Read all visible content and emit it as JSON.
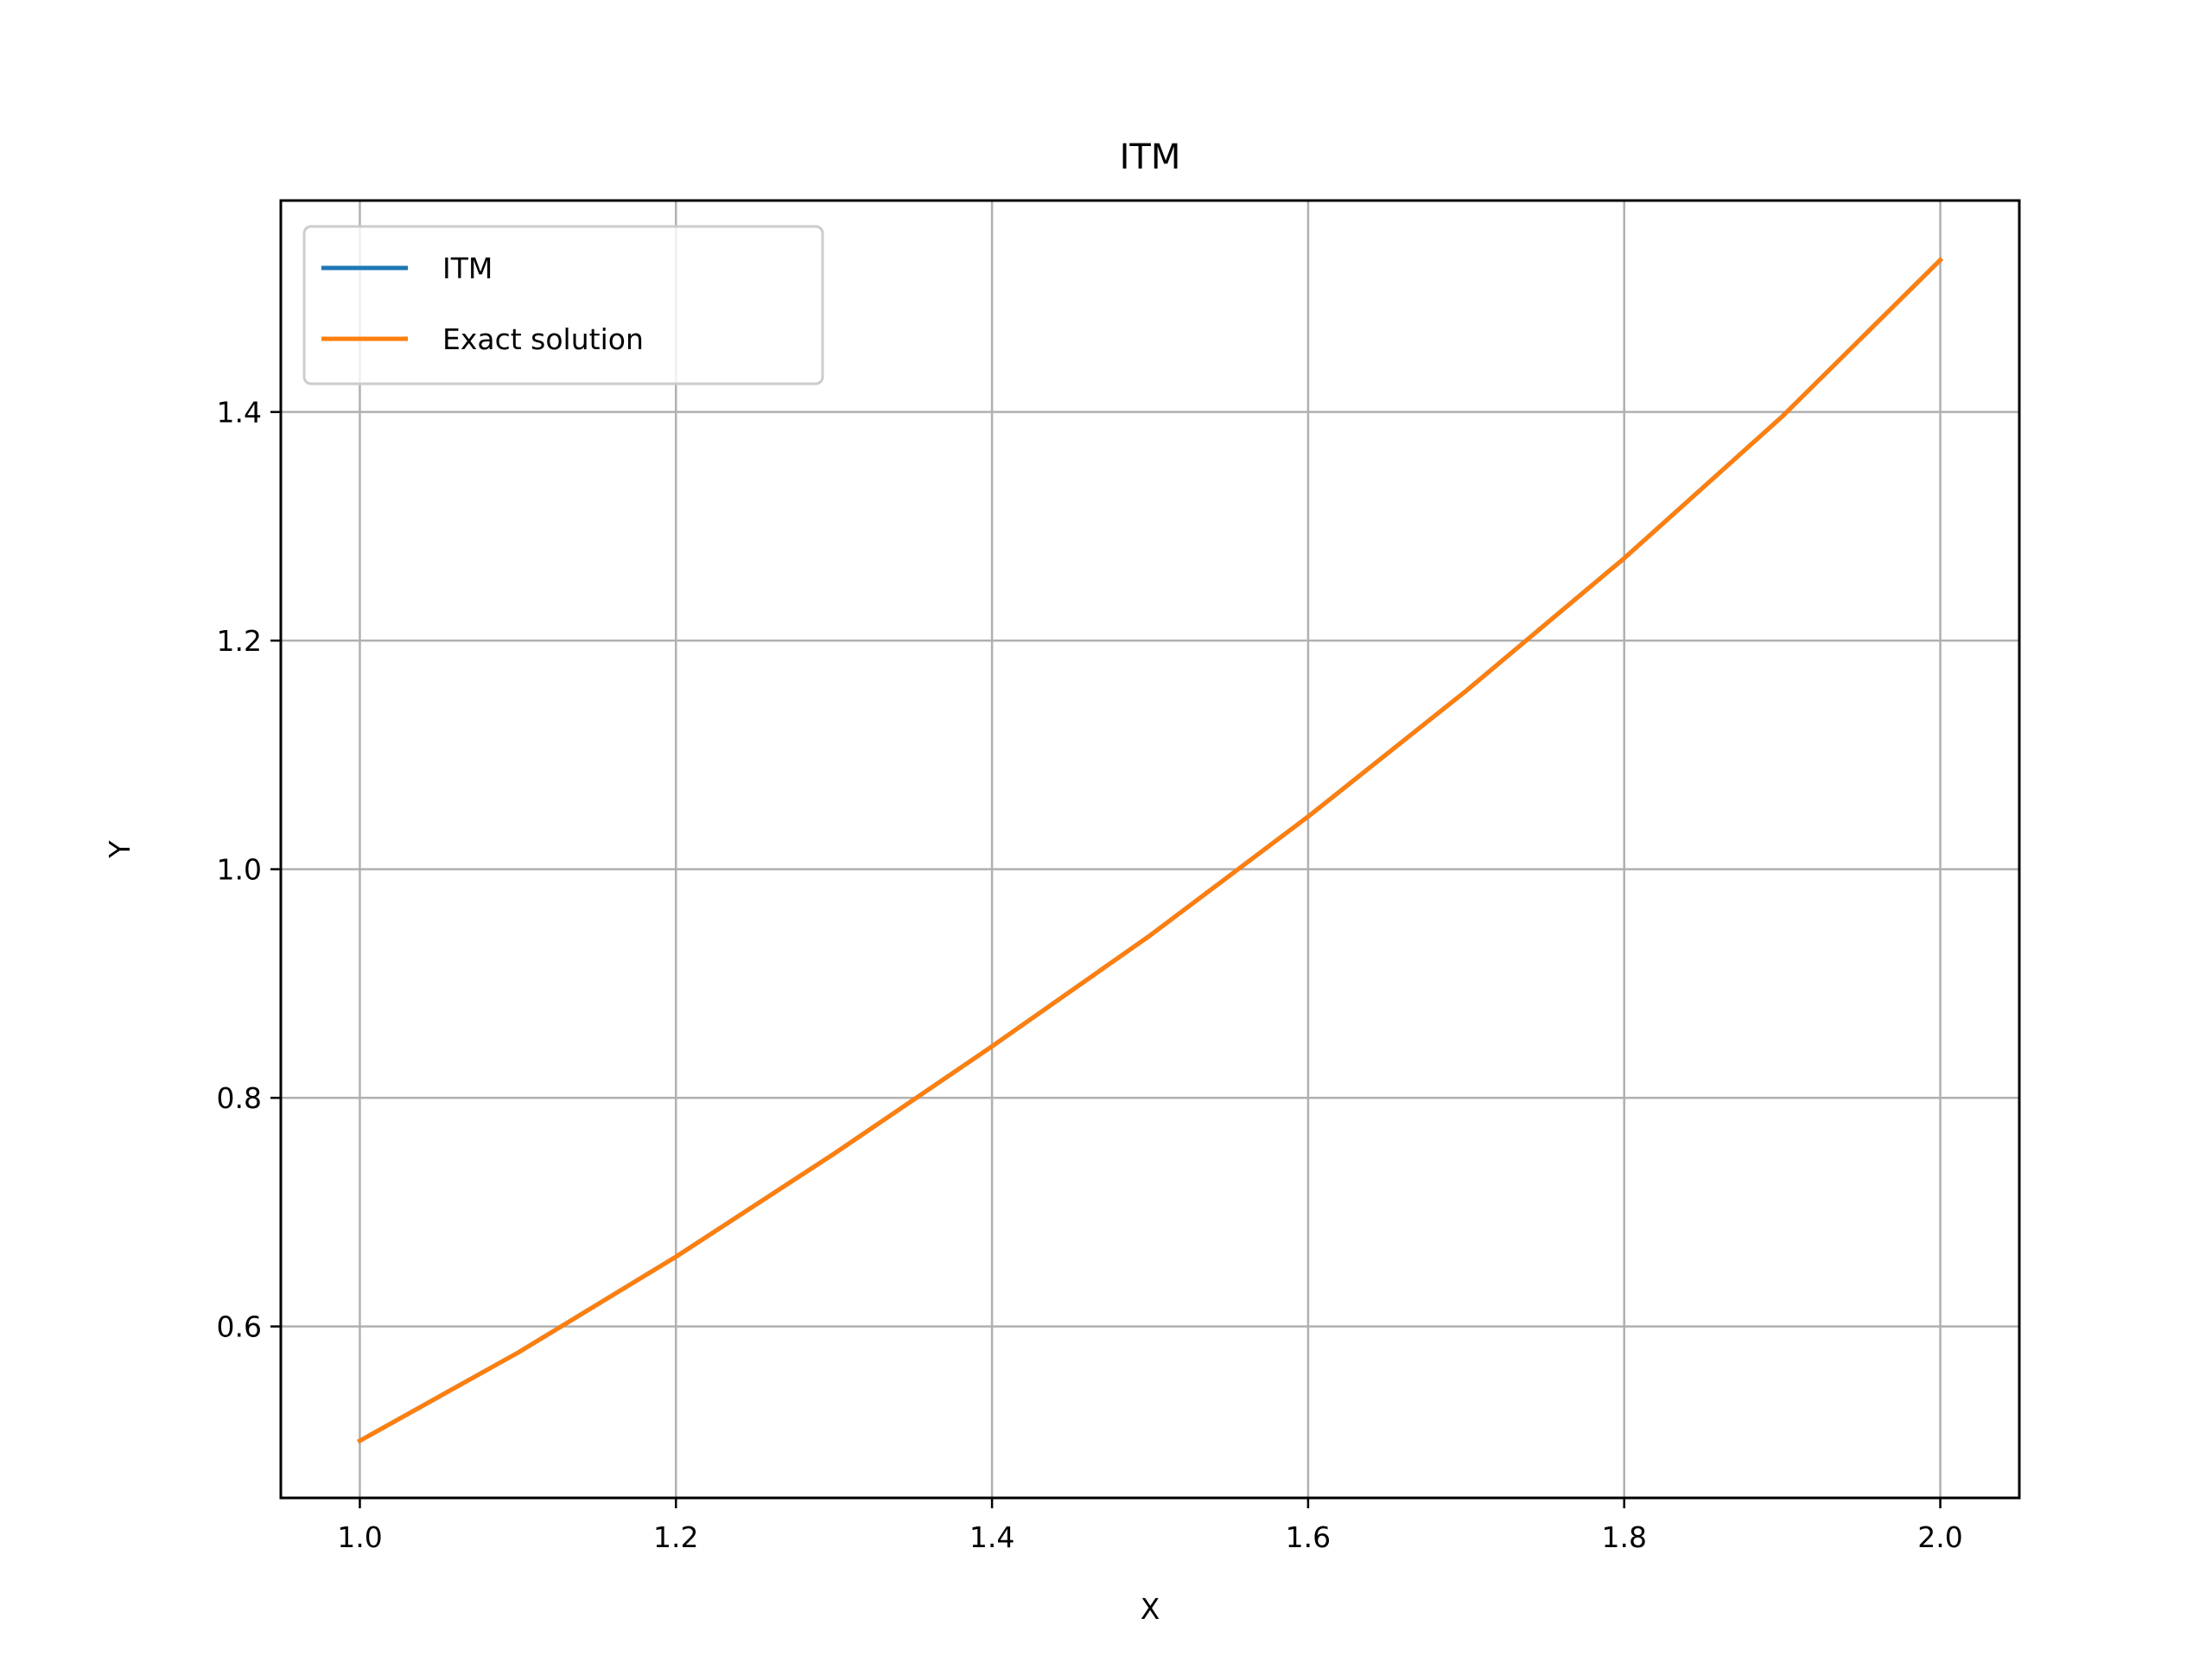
{
  "chart_data": {
    "type": "line",
    "title": "ITM",
    "xlabel": "X",
    "ylabel": "Y",
    "xlim": [
      0.95,
      2.05
    ],
    "ylim": [
      0.45,
      1.585
    ],
    "xticks": [
      1.0,
      1.2,
      1.4,
      1.6,
      1.8,
      2.0
    ],
    "xtick_labels": [
      "1.0",
      "1.2",
      "1.4",
      "1.6",
      "1.8",
      "2.0"
    ],
    "yticks": [
      0.6,
      0.8,
      1.0,
      1.2,
      1.4
    ],
    "ytick_labels": [
      "0.6",
      "0.8",
      "1.0",
      "1.2",
      "1.4"
    ],
    "grid": true,
    "legend_position": "top-left",
    "series": [
      {
        "name": "ITM",
        "color": "#1f77b4",
        "x": [
          1.0,
          1.1,
          1.2,
          1.3,
          1.4,
          1.5,
          1.6,
          1.7,
          1.8,
          1.9,
          2.0
        ],
        "y": [
          0.5,
          0.577,
          0.661,
          0.751,
          0.845,
          0.942,
          1.046,
          1.156,
          1.272,
          1.396,
          1.533
        ]
      },
      {
        "name": "Exact solution",
        "color": "#ff7f0e",
        "x": [
          1.0,
          1.1,
          1.2,
          1.3,
          1.4,
          1.5,
          1.6,
          1.7,
          1.8,
          1.9,
          2.0
        ],
        "y": [
          0.5,
          0.577,
          0.661,
          0.751,
          0.845,
          0.942,
          1.046,
          1.156,
          1.272,
          1.396,
          1.533
        ]
      }
    ]
  }
}
